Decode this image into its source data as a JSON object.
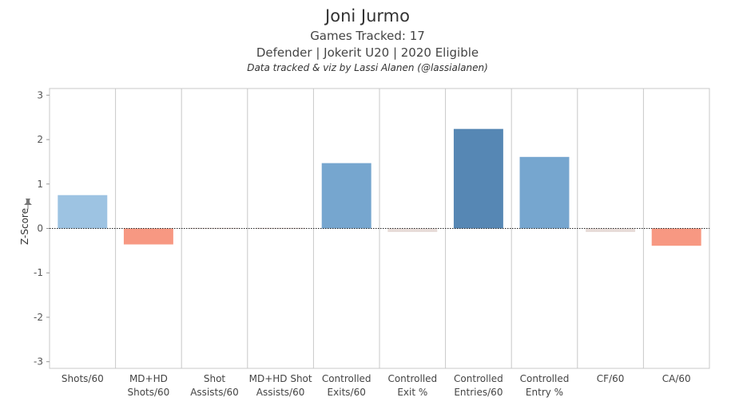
{
  "header": {
    "title": "Joni Jurmo",
    "line1": "Games Tracked: 17",
    "line2": "Defender | Jokerit U20 | 2020 Eligible",
    "credit": "Data tracked & viz by Lassi Alanen (@lassialanen)"
  },
  "chart_data": {
    "type": "bar",
    "ylabel": "Z-Score",
    "ylim": [
      -3.15,
      3.15
    ],
    "yticks": [
      3,
      2,
      1,
      0,
      -1,
      -2,
      -3
    ],
    "grid": true,
    "categories": [
      [
        "Shots/60"
      ],
      [
        "MD+HD",
        "Shots/60"
      ],
      [
        "Shot",
        "Assists/60"
      ],
      [
        "MD+HD Shot",
        "Assists/60"
      ],
      [
        "Controlled",
        "Exits/60"
      ],
      [
        "Controlled",
        "Exit %"
      ],
      [
        "Controlled",
        "Entries/60"
      ],
      [
        "Controlled",
        "Entry %"
      ],
      [
        "CF/60"
      ],
      [
        "CA/60"
      ]
    ],
    "values": [
      0.75,
      -0.36,
      0.0,
      0.0,
      1.47,
      -0.08,
      2.24,
      1.61,
      -0.08,
      -0.39
    ],
    "colors": [
      "#9dc3e2",
      "#f79882",
      "#e8dcd8",
      "#e8dcd8",
      "#76a6cf",
      "#e8dcd8",
      "#5687b4",
      "#76a6cf",
      "#e8dcd8",
      "#f79882"
    ]
  }
}
